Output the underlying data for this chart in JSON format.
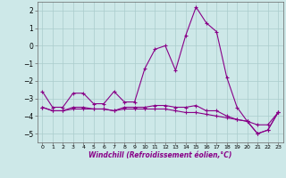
{
  "xlabel": "Windchill (Refroidissement éolien,°C)",
  "background_color": "#cde8e8",
  "line_color": "#880088",
  "grid_color": "#aacccc",
  "x_hours": [
    0,
    1,
    2,
    3,
    4,
    5,
    6,
    7,
    8,
    9,
    10,
    11,
    12,
    13,
    14,
    15,
    16,
    17,
    18,
    19,
    20,
    21,
    22,
    23
  ],
  "series1": [
    -2.6,
    -3.5,
    -3.5,
    -2.7,
    -2.7,
    -3.3,
    -3.3,
    -2.6,
    -3.2,
    -3.2,
    -1.3,
    -0.2,
    0.0,
    -1.4,
    0.6,
    2.2,
    1.3,
    0.8,
    -1.8,
    -3.5,
    -4.3,
    -5.0,
    -4.8,
    -3.8
  ],
  "series2": [
    -3.5,
    -3.7,
    -3.7,
    -3.5,
    -3.5,
    -3.6,
    -3.6,
    -3.7,
    -3.5,
    -3.5,
    -3.5,
    -3.4,
    -3.4,
    -3.5,
    -3.5,
    -3.4,
    -3.7,
    -3.7,
    -4.0,
    -4.2,
    -4.3,
    -5.0,
    -4.8,
    -3.8
  ],
  "series3": [
    -3.5,
    -3.7,
    -3.7,
    -3.6,
    -3.6,
    -3.6,
    -3.6,
    -3.7,
    -3.6,
    -3.6,
    -3.6,
    -3.6,
    -3.6,
    -3.7,
    -3.8,
    -3.8,
    -3.9,
    -4.0,
    -4.1,
    -4.2,
    -4.3,
    -4.5,
    -4.5,
    -3.8
  ],
  "ylim": [
    -5.5,
    2.5
  ],
  "yticks": [
    -5,
    -4,
    -3,
    -2,
    -1,
    0,
    1,
    2
  ],
  "xlim": [
    -0.5,
    23.5
  ]
}
